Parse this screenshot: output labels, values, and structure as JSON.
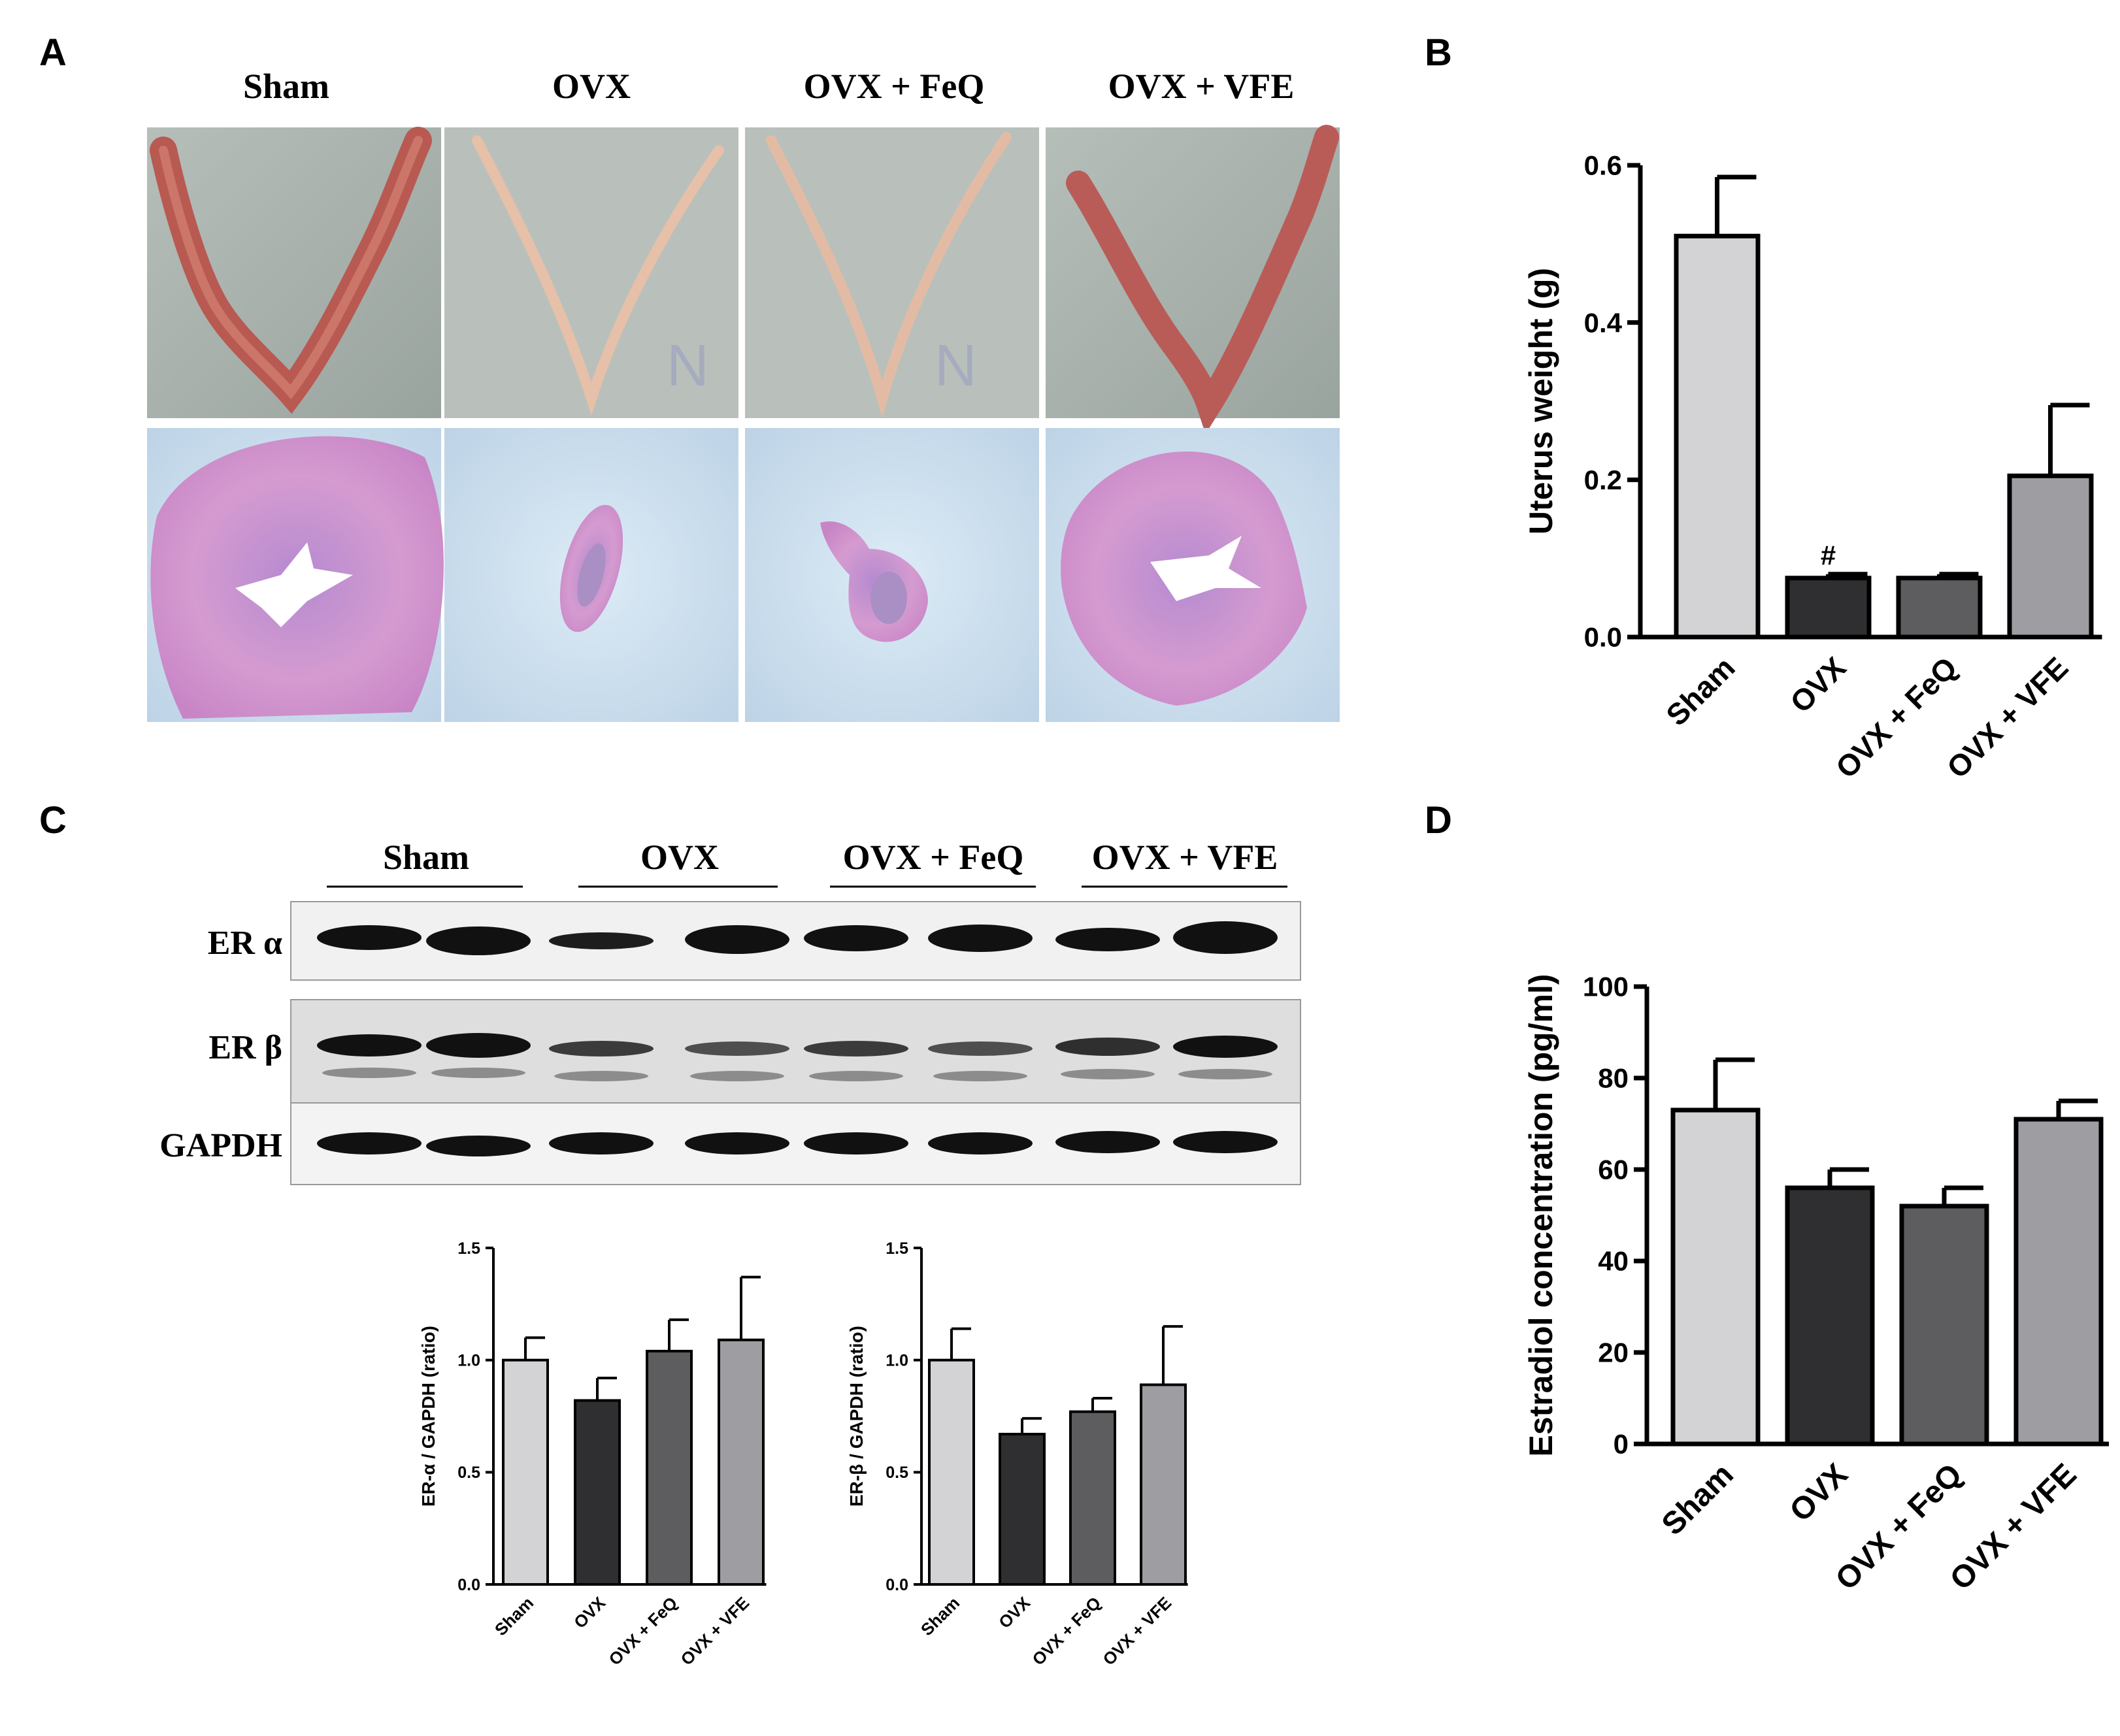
{
  "panels": {
    "a": {
      "letter": "A",
      "groups": [
        "Sham",
        "OVX",
        "OVX + FeQ",
        "OVX + VFE"
      ]
    },
    "b": {
      "letter": "B"
    },
    "c": {
      "letter": "C",
      "groups": [
        "Sham",
        "OVX",
        "OVX + FeQ",
        "OVX + VFE"
      ],
      "blot_labels": [
        "ER α",
        "ER β",
        "GAPDH"
      ]
    },
    "d": {
      "letter": "D"
    }
  },
  "colors": {
    "sham": "#d3d3d5",
    "ovx": "#2f2f31",
    "feq": "#5d5d5f",
    "vfe": "#9d9da2",
    "tissue_photo_bg": "#a9b2ad",
    "he_bg": "#cfe1ef",
    "he_tissue": "#c98fc9"
  },
  "chart_data": [
    {
      "id": "B",
      "type": "bar",
      "categories": [
        "Sham",
        "OVX",
        "OVX + FeQ",
        "OVX + VFE"
      ],
      "values": [
        0.51,
        0.075,
        0.075,
        0.205
      ],
      "errors": [
        0.075,
        0.005,
        0.005,
        0.09
      ],
      "ylabel": "Uterus weight (g)",
      "ylim": [
        0,
        0.6
      ],
      "yticks": [
        "0.0",
        "0.2",
        "0.4",
        "0.6"
      ],
      "annotations": [
        {
          "category": "OVX",
          "text": "#"
        }
      ]
    },
    {
      "id": "C-alpha",
      "type": "bar",
      "categories": [
        "Sham",
        "OVX",
        "OVX + FeQ",
        "OVX + VFE"
      ],
      "values": [
        1.0,
        0.82,
        1.04,
        1.09
      ],
      "errors": [
        0.1,
        0.1,
        0.14,
        0.28
      ],
      "ylabel": "ER-α / GAPDH (ratio)",
      "ylim": [
        0,
        1.5
      ],
      "yticks": [
        "0.0",
        "0.5",
        "1.0",
        "1.5"
      ]
    },
    {
      "id": "C-beta",
      "type": "bar",
      "categories": [
        "Sham",
        "OVX",
        "OVX + FeQ",
        "OVX + VFE"
      ],
      "values": [
        1.0,
        0.67,
        0.77,
        0.89
      ],
      "errors": [
        0.14,
        0.07,
        0.06,
        0.26
      ],
      "ylabel": "ER-β / GAPDH (ratio)",
      "ylim": [
        0,
        1.5
      ],
      "yticks": [
        "0.0",
        "0.5",
        "1.0",
        "1.5"
      ]
    },
    {
      "id": "D",
      "type": "bar",
      "categories": [
        "Sham",
        "OVX",
        "OVX + FeQ",
        "OVX + VFE"
      ],
      "values": [
        73,
        56,
        52,
        71
      ],
      "errors": [
        11,
        4,
        4,
        4
      ],
      "ylabel": "Estradiol concentration (pg/ml)",
      "ylim": [
        0,
        100
      ],
      "yticks": [
        "0",
        "20",
        "40",
        "60",
        "80",
        "100"
      ]
    }
  ]
}
